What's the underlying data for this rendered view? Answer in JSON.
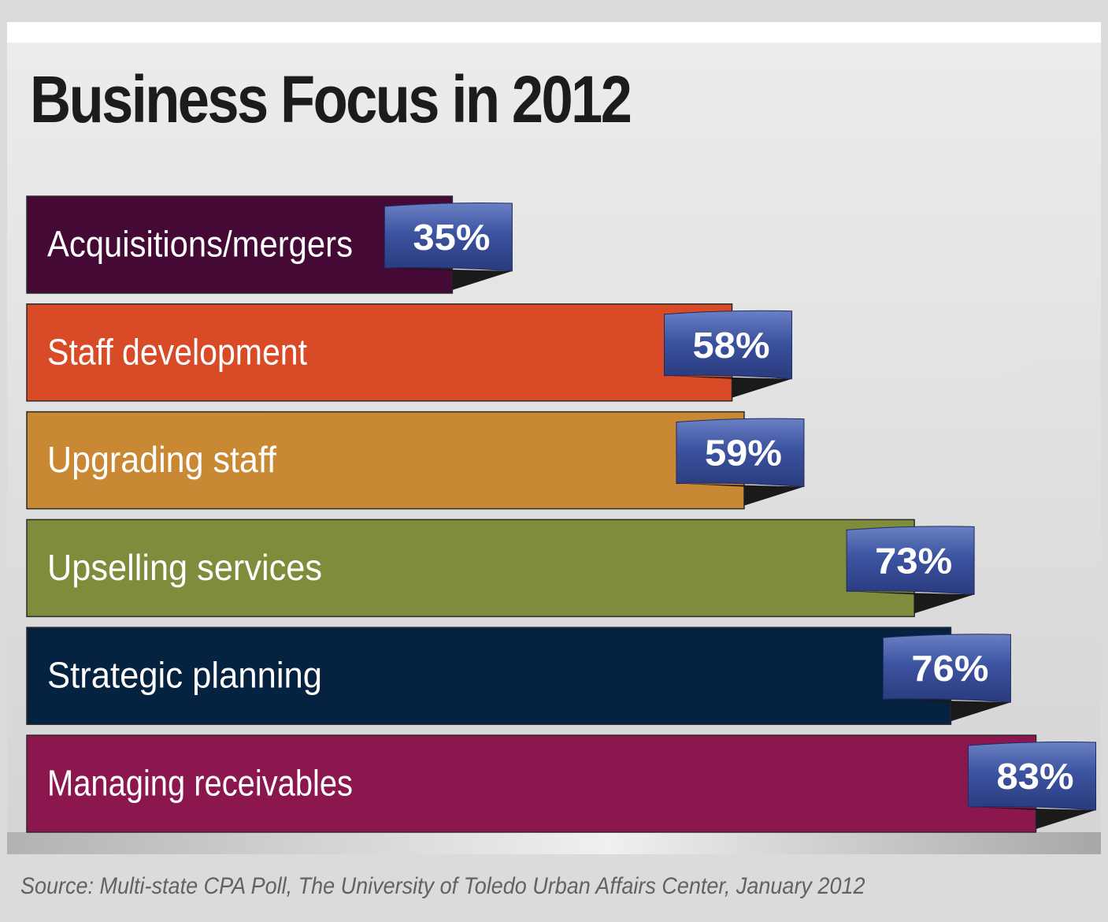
{
  "title": "Business Focus in 2012",
  "source": "Source: Multi-state CPA Poll, The University of Toledo Urban Affairs Center, January 2012",
  "chart_data": {
    "type": "bar",
    "orientation": "horizontal",
    "title": "Business Focus in 2012",
    "categories": [
      "Acquisitions/mergers",
      "Staff development",
      "Upgrading staff",
      "Upselling services",
      "Strategic planning",
      "Managing receivables"
    ],
    "values": [
      35,
      58,
      59,
      73,
      76,
      83
    ],
    "labels": [
      "35%",
      "58%",
      "59%",
      "73%",
      "76%",
      "83%"
    ],
    "colors": [
      "#440a35",
      "#d94a27",
      "#c98833",
      "#7e8c3b",
      "#052240",
      "#8c174f"
    ],
    "tag_color": "#3a4f98",
    "xlim": [
      0,
      100
    ],
    "grid": false,
    "legend": "none"
  }
}
